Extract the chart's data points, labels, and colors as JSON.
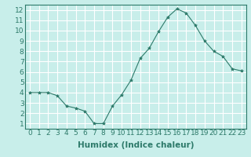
{
  "x": [
    0,
    1,
    2,
    3,
    4,
    5,
    6,
    7,
    8,
    9,
    10,
    11,
    12,
    13,
    14,
    15,
    16,
    17,
    18,
    19,
    20,
    21,
    22,
    23
  ],
  "y": [
    4.0,
    4.0,
    4.0,
    3.7,
    2.7,
    2.5,
    2.2,
    1.0,
    1.0,
    2.7,
    3.8,
    5.2,
    7.3,
    8.3,
    9.9,
    11.3,
    12.1,
    11.7,
    10.5,
    9.0,
    8.0,
    7.5,
    6.3,
    6.1
  ],
  "line_color": "#2d7a6a",
  "marker": "*",
  "marker_size": 3,
  "bg_color": "#c8eeea",
  "grid_color": "#ffffff",
  "xlabel": "Humidex (Indice chaleur)",
  "xlabel_fontsize": 7.5,
  "tick_fontsize": 6.5,
  "xlim": [
    -0.5,
    23.5
  ],
  "ylim": [
    0.5,
    12.5
  ],
  "yticks": [
    1,
    2,
    3,
    4,
    5,
    6,
    7,
    8,
    9,
    10,
    11,
    12
  ],
  "xticks": [
    0,
    1,
    2,
    3,
    4,
    5,
    6,
    7,
    8,
    9,
    10,
    11,
    12,
    13,
    14,
    15,
    16,
    17,
    18,
    19,
    20,
    21,
    22,
    23
  ]
}
